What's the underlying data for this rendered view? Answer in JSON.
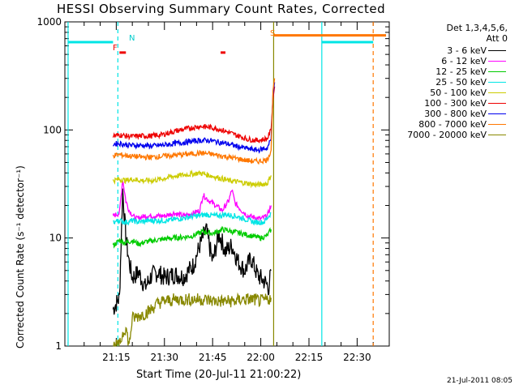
{
  "title": "HESSI Observing Summary Count Rates, Corrected",
  "footer": "21-Jul-2011 08:05",
  "legend": {
    "header_line1": "Det 1,3,4,5,6,",
    "header_line2": "Att 0",
    "items": [
      {
        "label": "3 - 6 keV",
        "color": "#000000"
      },
      {
        "label": "6 - 12 keV",
        "color": "#ff00ff"
      },
      {
        "label": "12 - 25 keV",
        "color": "#00cc00"
      },
      {
        "label": "25 - 50 keV",
        "color": "#00e5e5"
      },
      {
        "label": "50 - 100 keV",
        "color": "#cccc00"
      },
      {
        "label": "100 - 300 keV",
        "color": "#ee0000"
      },
      {
        "label": "300 - 800 keV",
        "color": "#0000ee"
      },
      {
        "label": "800 - 7000 keV",
        "color": "#ff7700"
      },
      {
        "label": "7000 - 20000 keV",
        "color": "#888800"
      }
    ]
  },
  "markers": {
    "N": "N",
    "F": "F",
    "S": "S"
  },
  "chart_data": {
    "type": "line",
    "title": "HESSI Observing Summary Count Rates, Corrected",
    "xlabel": "Start Time (20-Jul-11 21:00:22)",
    "ylabel": "Corrected Count Rate (s⁻¹ detector⁻¹)",
    "y_scale": "log",
    "ylim": [
      1,
      1000
    ],
    "y_ticks": [
      1,
      10,
      100,
      1000
    ],
    "y_tick_labels": [
      "1",
      "10",
      "100",
      "1000"
    ],
    "xlim_minutes": [
      0,
      41
    ],
    "x_ticks_minutes": [
      15,
      30,
      45,
      60,
      75,
      90
    ],
    "x_tick_labels": [
      "21:15",
      "21:30",
      "21:45",
      "22:00",
      "22:15",
      "22:30"
    ],
    "x_unit": "minutes after 21:00",
    "series": [
      {
        "name": "3 - 6 keV",
        "color": "#000000",
        "x": [
          14,
          16,
          17,
          18,
          19,
          20,
          22,
          24,
          26,
          28,
          30,
          33,
          36,
          39,
          41,
          43,
          45,
          47,
          49,
          51,
          53,
          55,
          57,
          59,
          61,
          62.5,
          63.2
        ],
        "y": [
          2.2,
          2.8,
          28,
          10,
          6,
          4.3,
          4.8,
          3.5,
          4.5,
          4.8,
          4.3,
          4.6,
          4.4,
          5.6,
          8.5,
          12,
          6,
          11,
          7.5,
          8.5,
          6,
          5,
          6.5,
          4.5,
          4,
          3.5,
          5
        ]
      },
      {
        "name": "6 - 12 keV",
        "color": "#ff00ff",
        "x": [
          14,
          16,
          17,
          18,
          19,
          21,
          24,
          27,
          30,
          33,
          36,
          39,
          41,
          42,
          44,
          46,
          48,
          50,
          51,
          52,
          54,
          56,
          58,
          60,
          62,
          63.2
        ],
        "y": [
          16,
          17,
          35,
          22,
          18,
          15,
          16,
          16,
          16,
          17,
          16,
          17,
          18,
          25,
          22,
          20,
          18,
          22,
          28,
          21,
          18,
          16,
          15.5,
          15,
          16,
          20
        ]
      },
      {
        "name": "12 - 25 keV",
        "color": "#00cc00",
        "x": [
          14,
          16,
          18,
          20,
          22,
          24,
          27,
          30,
          33,
          36,
          39,
          42,
          45,
          48,
          51,
          54,
          57,
          60,
          62,
          63.2
        ],
        "y": [
          8.5,
          9.5,
          9,
          9.5,
          8.8,
          9.2,
          9.5,
          9.8,
          10,
          10.2,
          10.5,
          11.5,
          11,
          12,
          11.5,
          11,
          10.5,
          10,
          10.5,
          12
        ]
      },
      {
        "name": "25 - 50 keV",
        "color": "#00e5e5",
        "x": [
          14,
          16,
          18,
          20,
          22,
          25,
          28,
          31,
          34,
          37,
          40,
          43,
          46,
          49,
          52,
          55,
          58,
          61,
          63.2
        ],
        "y": [
          14,
          14.5,
          14,
          14.5,
          14,
          14.5,
          14.5,
          14.5,
          15,
          15.5,
          16,
          16.5,
          16,
          16.5,
          16,
          15,
          14,
          14,
          17
        ]
      },
      {
        "name": "50 - 100 keV",
        "color": "#cccc00",
        "x": [
          14,
          16,
          18,
          20,
          23,
          26,
          29,
          32,
          35,
          38,
          41,
          44,
          47,
          50,
          53,
          56,
          59,
          62,
          63.2
        ],
        "y": [
          34,
          35,
          34,
          35,
          34,
          34,
          35,
          37,
          38,
          39,
          40,
          38,
          36,
          34,
          33,
          32,
          31,
          32,
          38
        ]
      },
      {
        "name": "100 - 300 keV",
        "color": "#ee0000",
        "x": [
          14,
          16,
          18,
          20,
          23,
          26,
          29,
          32,
          35,
          38,
          41,
          44,
          47,
          50,
          53,
          56,
          59,
          62,
          63.2
        ],
        "y": [
          88,
          90,
          88,
          87,
          88,
          88,
          90,
          95,
          100,
          104,
          108,
          106,
          102,
          95,
          88,
          82,
          80,
          83,
          100
        ]
      },
      {
        "name": "300 - 800 keV",
        "color": "#0000ee",
        "x": [
          14,
          16,
          18,
          20,
          23,
          26,
          29,
          32,
          35,
          38,
          41,
          44,
          47,
          50,
          53,
          56,
          59,
          62,
          63.2
        ],
        "y": [
          74,
          75,
          73,
          72,
          72,
          71,
          72,
          74,
          76,
          78,
          80,
          80,
          77,
          74,
          70,
          67,
          65,
          68,
          82
        ]
      },
      {
        "name": "800 - 7000 keV",
        "color": "#ff7700",
        "x": [
          14,
          16,
          18,
          20,
          23,
          26,
          29,
          32,
          35,
          38,
          41,
          44,
          47,
          50,
          53,
          56,
          59,
          62,
          63.2
        ],
        "y": [
          58,
          59,
          58,
          57,
          56,
          56,
          57,
          58,
          59,
          60,
          61,
          60,
          58,
          56,
          54,
          52,
          51,
          53,
          65
        ]
      },
      {
        "name": "7000 - 20000 keV",
        "color": "#888800",
        "x": [
          14,
          16,
          17,
          18,
          19,
          20,
          22,
          24,
          26,
          28,
          30,
          34,
          38,
          42,
          46,
          50,
          52,
          54,
          56,
          58,
          60,
          62,
          63.2
        ],
        "y": [
          1,
          1,
          1.3,
          1.5,
          1,
          1.8,
          1.9,
          2.0,
          2.2,
          2.5,
          2.6,
          2.7,
          2.7,
          2.7,
          2.6,
          2.6,
          2.6,
          2.7,
          2.7,
          2.7,
          2.6,
          2.7,
          2.8
        ]
      }
    ],
    "spikes": {
      "x": [
        63.8,
        64.3
      ],
      "values": [
        230,
        300
      ]
    },
    "attenuator_bars": [
      {
        "color": "#00e5e5",
        "segments": [
          [
            0,
            14
          ],
          [
            79,
            95
          ]
        ],
        "y": 650
      },
      {
        "color": "#ff7700",
        "segments": [
          [
            64,
            99
          ]
        ],
        "y": 750
      }
    ],
    "flare_flags": [
      {
        "color": "#ee0000",
        "segments": [
          [
            16,
            18
          ],
          [
            47.5,
            49
          ]
        ],
        "y": 520
      }
    ],
    "vertical_lines": [
      {
        "x": 0,
        "color": "#00e5e5",
        "style": "solid"
      },
      {
        "x": 15.5,
        "color": "#00e5e5",
        "style": "dashed"
      },
      {
        "x": 64,
        "color": "#888800",
        "style": "solid"
      },
      {
        "x": 79,
        "color": "#00e5e5",
        "style": "solid"
      },
      {
        "x": 95,
        "color": "#ff7700",
        "style": "dashed"
      }
    ],
    "x_range_minutes": [
      -1,
      100
    ]
  }
}
